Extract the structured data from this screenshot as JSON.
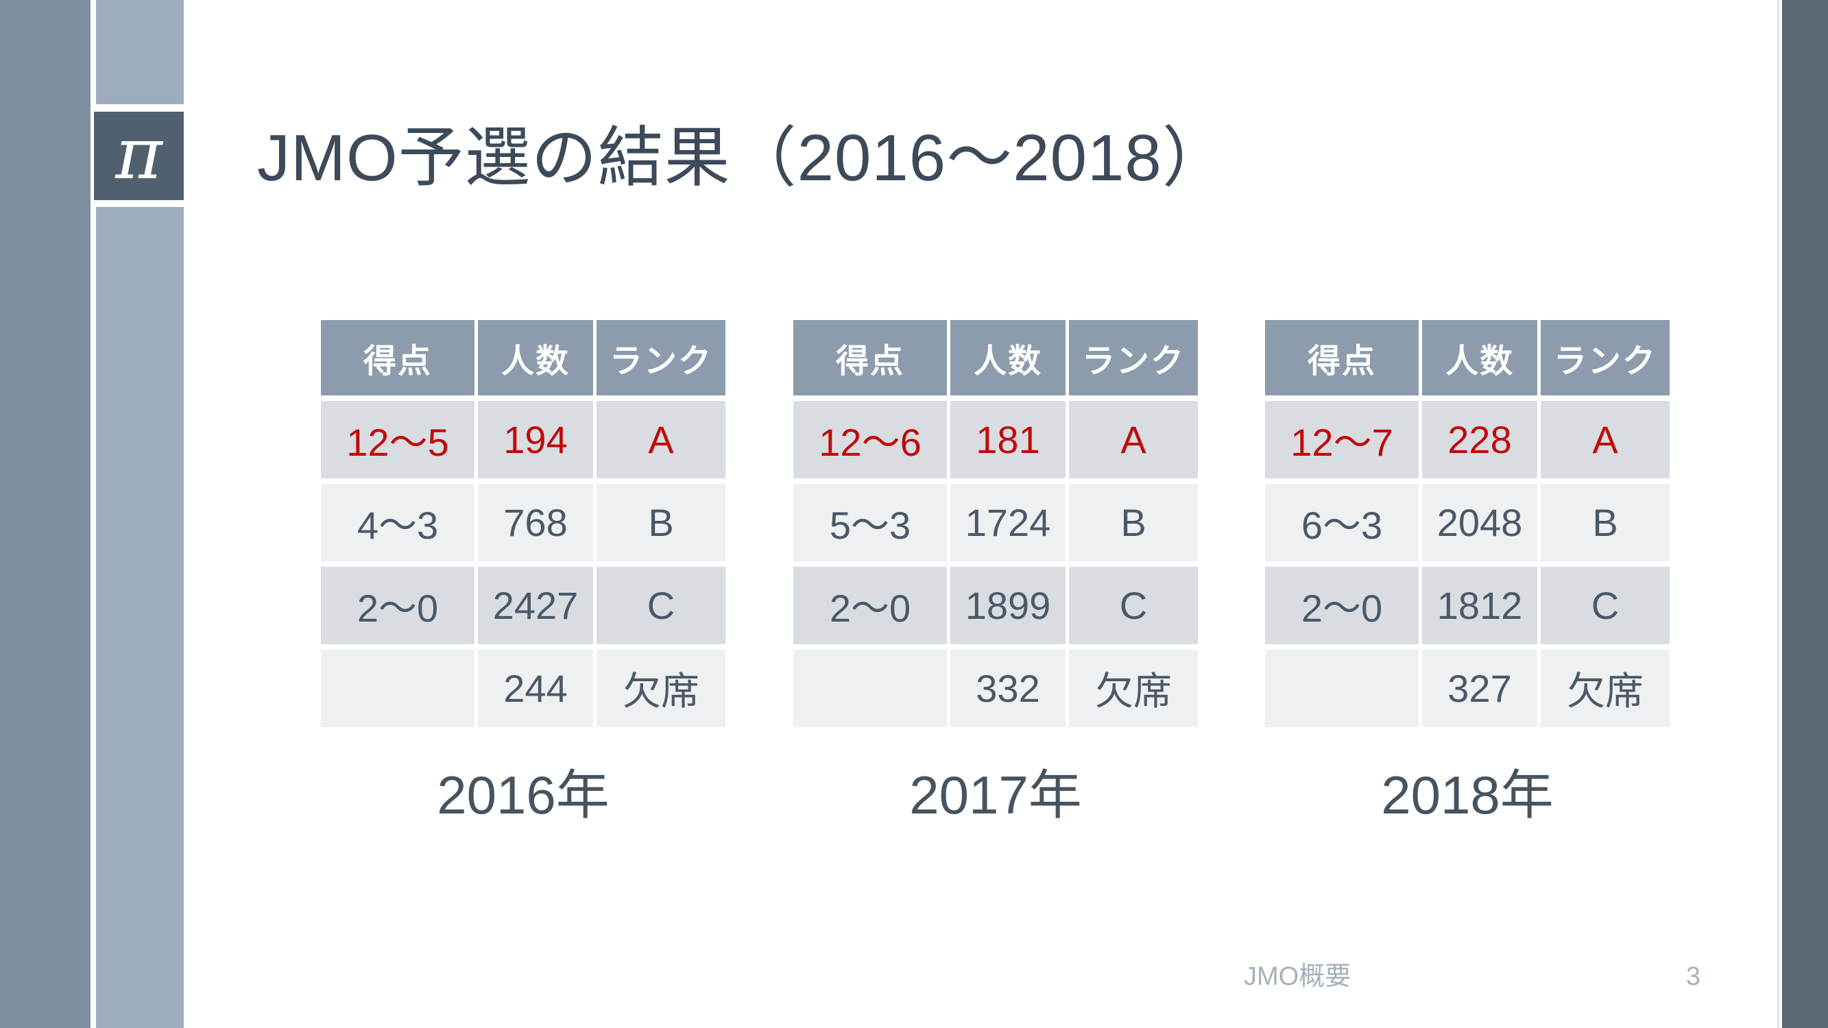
{
  "slide": {
    "title": "JMO予選の結果（2016〜2018）",
    "logo_glyph": "π",
    "footer": {
      "doc_title": "JMO概要",
      "page_number": "3"
    }
  },
  "colors": {
    "left_strip": "#7D8E9F",
    "accent_column": "#9EADBD",
    "pi_box": "#51606E",
    "right_strip": "#5A6670",
    "table_header_bg": "#8C9CAC",
    "row_dark_bg": "#D9DDE2",
    "row_light_bg": "#EEF0F2",
    "body_text": "#4A5868",
    "highlight_red": "#C00A0A",
    "title_text": "#3C4A59",
    "footer_text": "#A6B0BB"
  },
  "tables": [
    {
      "year_label": "2016年",
      "headers": {
        "score": "得点",
        "count": "人数",
        "rank": "ランク"
      },
      "rows": [
        {
          "score": "12〜5",
          "count": "194",
          "rank": "A",
          "highlight": true
        },
        {
          "score": "4〜3",
          "count": "768",
          "rank": "B",
          "highlight": false
        },
        {
          "score": "2〜0",
          "count": "2427",
          "rank": "C",
          "highlight": false
        },
        {
          "score": "",
          "count": "244",
          "rank": "欠席",
          "highlight": false
        }
      ]
    },
    {
      "year_label": "2017年",
      "headers": {
        "score": "得点",
        "count": "人数",
        "rank": "ランク"
      },
      "rows": [
        {
          "score": "12〜6",
          "count": "181",
          "rank": "A",
          "highlight": true
        },
        {
          "score": "5〜3",
          "count": "1724",
          "rank": "B",
          "highlight": false
        },
        {
          "score": "2〜0",
          "count": "1899",
          "rank": "C",
          "highlight": false
        },
        {
          "score": "",
          "count": "332",
          "rank": "欠席",
          "highlight": false
        }
      ]
    },
    {
      "year_label": "2018年",
      "headers": {
        "score": "得点",
        "count": "人数",
        "rank": "ランク"
      },
      "rows": [
        {
          "score": "12〜7",
          "count": "228",
          "rank": "A",
          "highlight": true
        },
        {
          "score": "6〜3",
          "count": "2048",
          "rank": "B",
          "highlight": false
        },
        {
          "score": "2〜0",
          "count": "1812",
          "rank": "C",
          "highlight": false
        },
        {
          "score": "",
          "count": "327",
          "rank": "欠席",
          "highlight": false
        }
      ]
    }
  ]
}
